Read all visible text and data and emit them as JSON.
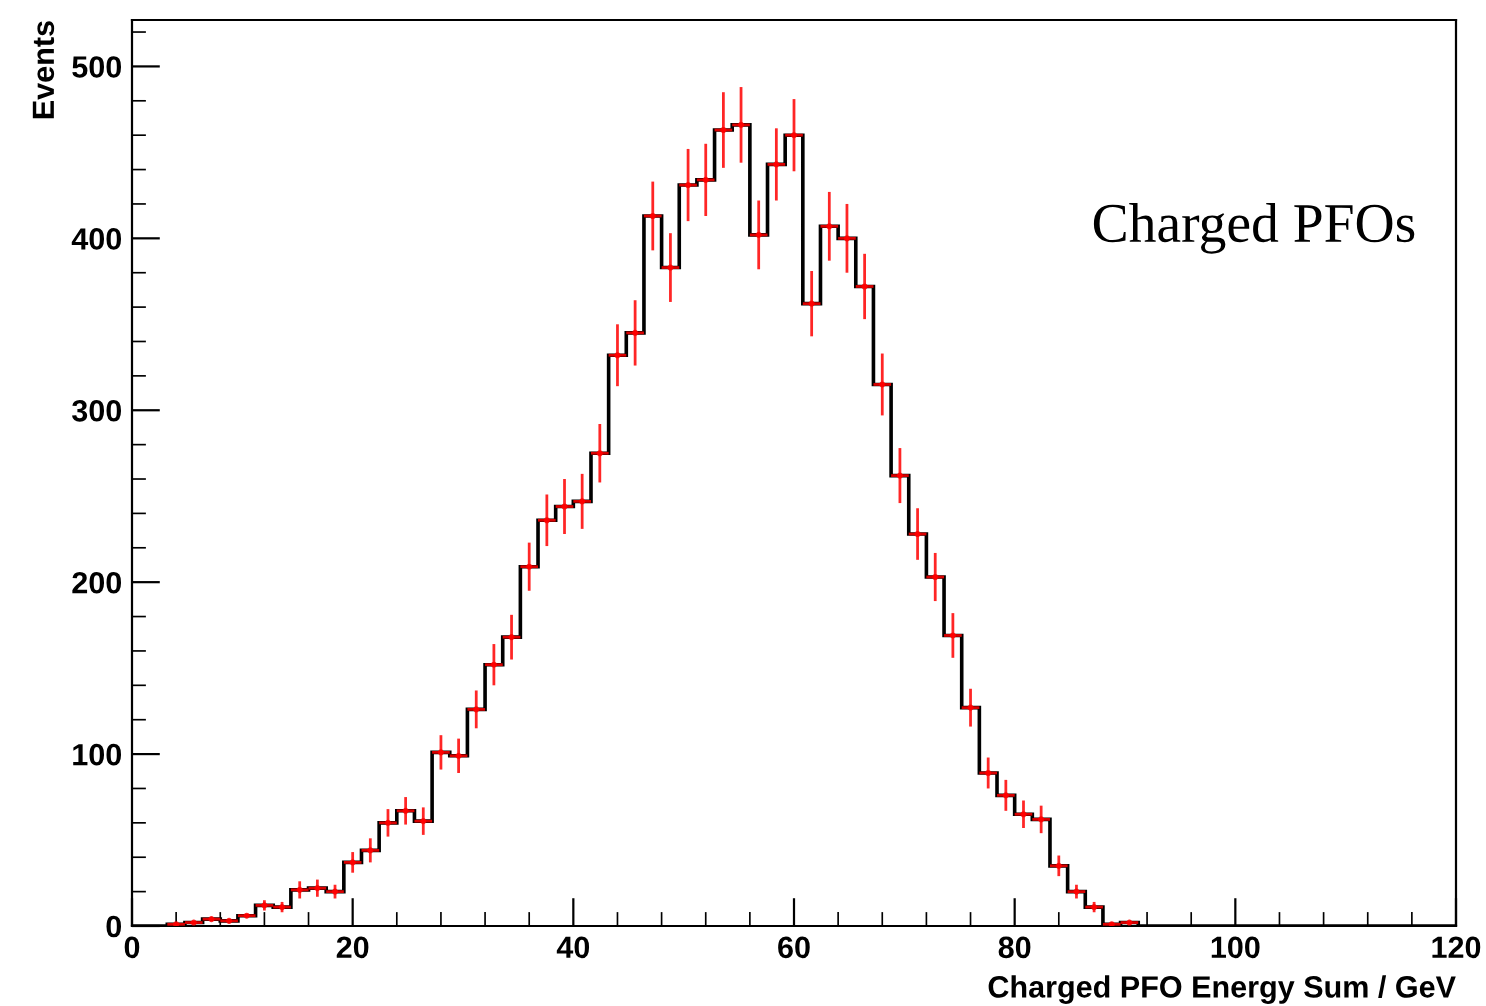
{
  "chart_data": {
    "type": "histogram",
    "xlabel": "Charged PFO Energy Sum / GeV",
    "ylabel": "Events",
    "annotations": [
      "Charged PFOs"
    ],
    "bins": [
      0,
      1.6,
      3.2,
      4.8,
      6.4,
      8,
      9.6,
      11.2,
      12.8,
      14.4,
      16,
      17.6,
      19.2,
      20.8,
      22.4,
      24,
      25.6,
      27.2,
      28.8,
      30.4,
      32,
      33.6,
      35.2,
      36.8,
      38.4,
      40,
      41.6,
      43.2,
      44.8,
      46.4,
      48,
      49.6,
      51.2,
      52.8,
      54.4,
      56,
      57.6,
      59.2,
      60.8,
      62.4,
      64,
      65.6,
      67.2,
      68.8,
      70.4,
      72,
      73.6,
      75.2,
      76.8,
      78.4,
      80,
      81.6,
      83.2,
      84.8,
      86.4,
      88,
      89.6,
      91.2,
      92.8,
      94.4,
      96,
      97.6,
      99.2,
      100.8,
      102.4,
      104,
      105.6,
      107.2,
      108.8,
      110.4,
      112,
      113.6,
      115.2,
      116.8,
      118.4,
      120
    ],
    "series": [
      {
        "color": "#000000",
        "values": [
          0,
          0,
          1,
          2,
          4,
          3,
          6,
          12,
          11,
          21,
          22,
          20,
          37,
          44,
          60,
          67,
          61,
          101,
          99,
          126,
          152,
          168,
          209,
          236,
          244,
          247,
          275,
          332,
          345,
          413,
          383,
          431,
          434,
          463,
          466,
          402,
          443,
          460,
          362,
          407,
          400,
          372,
          315,
          262,
          228,
          203,
          169,
          127,
          89,
          76,
          65,
          62,
          35,
          20,
          11,
          1,
          2,
          0,
          0,
          0,
          0,
          0,
          0,
          0,
          0,
          0,
          0,
          0,
          0,
          0,
          0,
          0,
          0,
          0,
          0
        ]
      },
      {
        "type": "scatter",
        "marker": "circle",
        "color": "#ff0000",
        "x": [
          4.0,
          5.6,
          7.2,
          8.8,
          10.4,
          12.0,
          13.6,
          15.2,
          16.8,
          18.4,
          20.0,
          21.6,
          23.2,
          24.8,
          26.4,
          28.0,
          29.6,
          31.2,
          32.8,
          34.4,
          36.0,
          37.6,
          39.2,
          40.8,
          42.4,
          44.0,
          45.6,
          47.2,
          48.8,
          50.4,
          52.0,
          53.6,
          55.2,
          56.8,
          58.4,
          60.0,
          61.6,
          63.2,
          64.8,
          66.4,
          68.0,
          69.6,
          71.2,
          72.8,
          74.4,
          76.0,
          77.6,
          79.2,
          80.8,
          82.4,
          84.0,
          85.6,
          87.2,
          88.8,
          90.4
        ],
        "values": [
          1,
          2,
          4,
          3,
          6,
          12,
          11,
          21,
          22,
          20,
          37,
          44,
          60,
          67,
          61,
          101,
          99,
          126,
          152,
          168,
          209,
          236,
          244,
          247,
          275,
          332,
          345,
          413,
          383,
          431,
          434,
          463,
          466,
          402,
          443,
          460,
          362,
          407,
          400,
          372,
          315,
          262,
          228,
          203,
          169,
          127,
          89,
          76,
          65,
          62,
          35,
          20,
          11,
          1,
          2
        ],
        "errors": [
          null,
          null,
          null,
          null,
          null,
          3,
          3,
          5,
          5,
          4,
          6,
          7,
          8,
          8,
          8,
          10,
          10,
          11,
          12,
          13,
          14,
          15,
          16,
          16,
          17,
          18,
          19,
          20,
          20,
          21,
          21,
          22,
          22,
          20,
          21,
          21,
          19,
          20,
          20,
          19,
          18,
          16,
          15,
          14,
          13,
          11,
          9,
          9,
          8,
          8,
          6,
          4,
          3,
          1,
          1
        ],
        "xerrors": [
          0.8,
          0.8,
          0.8,
          0.8,
          0.8,
          0.8,
          0.8,
          0.8,
          0.8,
          0.8,
          0.8,
          0.8,
          0.8,
          0.8,
          0.8,
          0.8,
          0.8,
          0.8,
          0.8,
          0.8,
          0.8,
          0.8,
          0.8,
          0.8,
          0.8,
          0.8,
          0.8,
          0.8,
          0.8,
          0.8,
          0.8,
          0.8,
          0.8,
          0.8,
          0.8,
          0.8,
          0.8,
          0.8,
          0.8,
          0.8,
          0.8,
          0.8,
          0.8,
          0.8,
          0.8,
          0.8,
          0.8,
          0.8,
          0.8,
          0.8,
          0.8,
          0.8,
          0.8,
          0.8,
          0.8
        ]
      }
    ],
    "xlim": [
      0,
      120
    ],
    "xticks": [
      0,
      20,
      40,
      60,
      80,
      100,
      120
    ],
    "ylim": [
      0,
      527
    ],
    "yticks": [
      0,
      100,
      200,
      300,
      400,
      500
    ],
    "grid": false,
    "legend": false
  }
}
